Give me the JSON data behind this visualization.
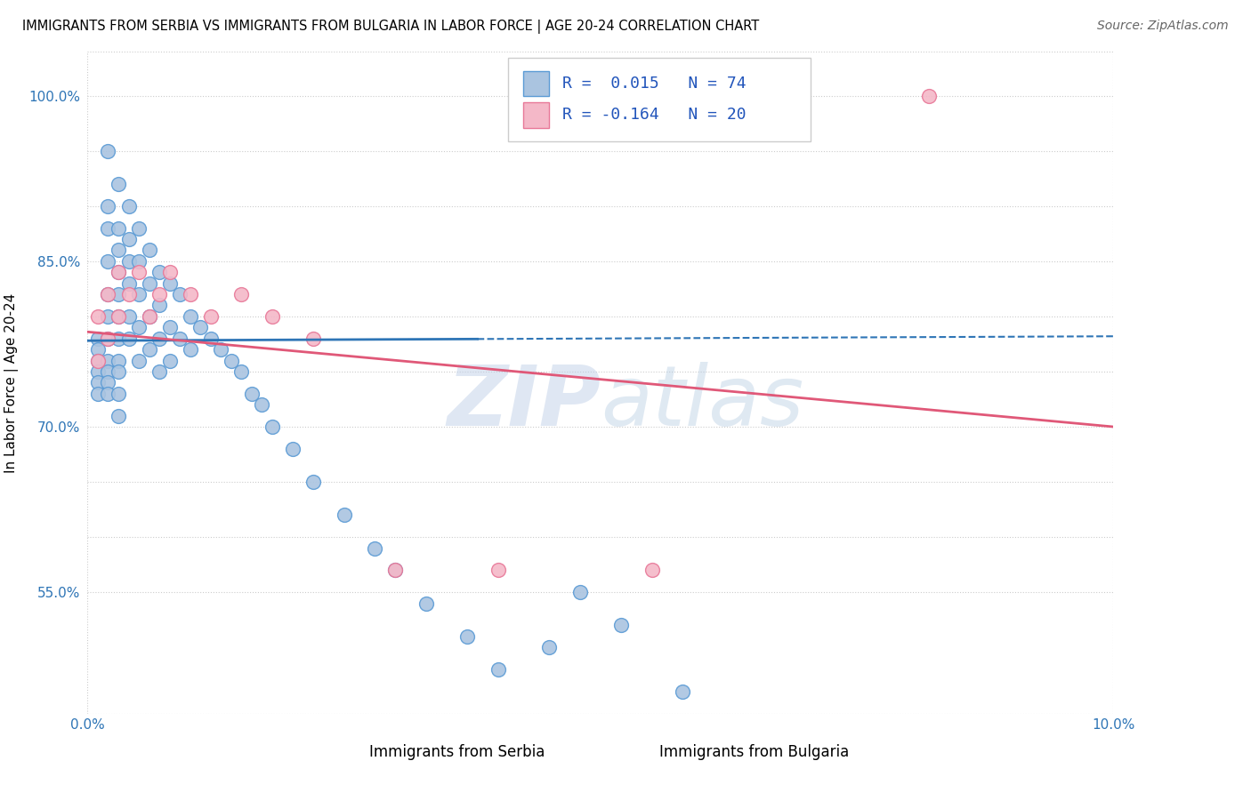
{
  "title": "IMMIGRANTS FROM SERBIA VS IMMIGRANTS FROM BULGARIA IN LABOR FORCE | AGE 20-24 CORRELATION CHART",
  "source": "Source: ZipAtlas.com",
  "ylabel_label": "In Labor Force | Age 20-24",
  "y_ticks": [
    0.55,
    0.6,
    0.65,
    0.7,
    0.75,
    0.8,
    0.85,
    0.9,
    0.95,
    1.0
  ],
  "y_tick_labels": [
    "55.0%",
    "",
    "",
    "70.0%",
    "",
    "",
    "85.0%",
    "",
    "",
    "100.0%"
  ],
  "x_min": 0.0,
  "x_max": 0.1,
  "y_min": 0.44,
  "y_max": 1.04,
  "serbia_R": 0.015,
  "serbia_N": 74,
  "bulgaria_R": -0.164,
  "bulgaria_N": 20,
  "serbia_color": "#aac4e0",
  "serbia_edge_color": "#5b9bd5",
  "serbia_line_color": "#2e75b6",
  "bulgaria_color": "#f4b8c8",
  "bulgaria_edge_color": "#e87898",
  "bulgaria_line_color": "#e05878",
  "serbia_scatter_x": [
    0.001,
    0.001,
    0.001,
    0.001,
    0.001,
    0.001,
    0.002,
    0.002,
    0.002,
    0.002,
    0.002,
    0.002,
    0.002,
    0.002,
    0.002,
    0.002,
    0.002,
    0.003,
    0.003,
    0.003,
    0.003,
    0.003,
    0.003,
    0.003,
    0.003,
    0.003,
    0.003,
    0.003,
    0.004,
    0.004,
    0.004,
    0.004,
    0.004,
    0.004,
    0.005,
    0.005,
    0.005,
    0.005,
    0.005,
    0.006,
    0.006,
    0.006,
    0.006,
    0.007,
    0.007,
    0.007,
    0.007,
    0.008,
    0.008,
    0.008,
    0.009,
    0.009,
    0.01,
    0.01,
    0.011,
    0.012,
    0.013,
    0.014,
    0.015,
    0.016,
    0.017,
    0.018,
    0.02,
    0.022,
    0.025,
    0.028,
    0.03,
    0.033,
    0.037,
    0.04,
    0.045,
    0.048,
    0.052,
    0.058
  ],
  "serbia_scatter_y": [
    0.78,
    0.77,
    0.76,
    0.75,
    0.74,
    0.73,
    0.95,
    0.9,
    0.88,
    0.85,
    0.82,
    0.8,
    0.78,
    0.76,
    0.75,
    0.74,
    0.73,
    0.92,
    0.88,
    0.86,
    0.84,
    0.82,
    0.8,
    0.78,
    0.76,
    0.75,
    0.73,
    0.71,
    0.9,
    0.87,
    0.85,
    0.83,
    0.8,
    0.78,
    0.88,
    0.85,
    0.82,
    0.79,
    0.76,
    0.86,
    0.83,
    0.8,
    0.77,
    0.84,
    0.81,
    0.78,
    0.75,
    0.83,
    0.79,
    0.76,
    0.82,
    0.78,
    0.8,
    0.77,
    0.79,
    0.78,
    0.77,
    0.76,
    0.75,
    0.73,
    0.72,
    0.7,
    0.68,
    0.65,
    0.62,
    0.59,
    0.57,
    0.54,
    0.51,
    0.48,
    0.5,
    0.55,
    0.52,
    0.46
  ],
  "bulgaria_scatter_x": [
    0.001,
    0.001,
    0.002,
    0.002,
    0.003,
    0.003,
    0.004,
    0.005,
    0.006,
    0.007,
    0.008,
    0.01,
    0.012,
    0.015,
    0.018,
    0.022,
    0.03,
    0.04,
    0.055,
    0.082
  ],
  "bulgaria_scatter_y": [
    0.8,
    0.76,
    0.82,
    0.78,
    0.84,
    0.8,
    0.82,
    0.84,
    0.8,
    0.82,
    0.84,
    0.82,
    0.8,
    0.82,
    0.8,
    0.78,
    0.57,
    0.57,
    0.57,
    1.0
  ],
  "watermark_zip": "ZIP",
  "watermark_atlas": "atlas",
  "legend_serbia_label": "Immigrants from Serbia",
  "legend_bulgaria_label": "Immigrants from Bulgaria"
}
